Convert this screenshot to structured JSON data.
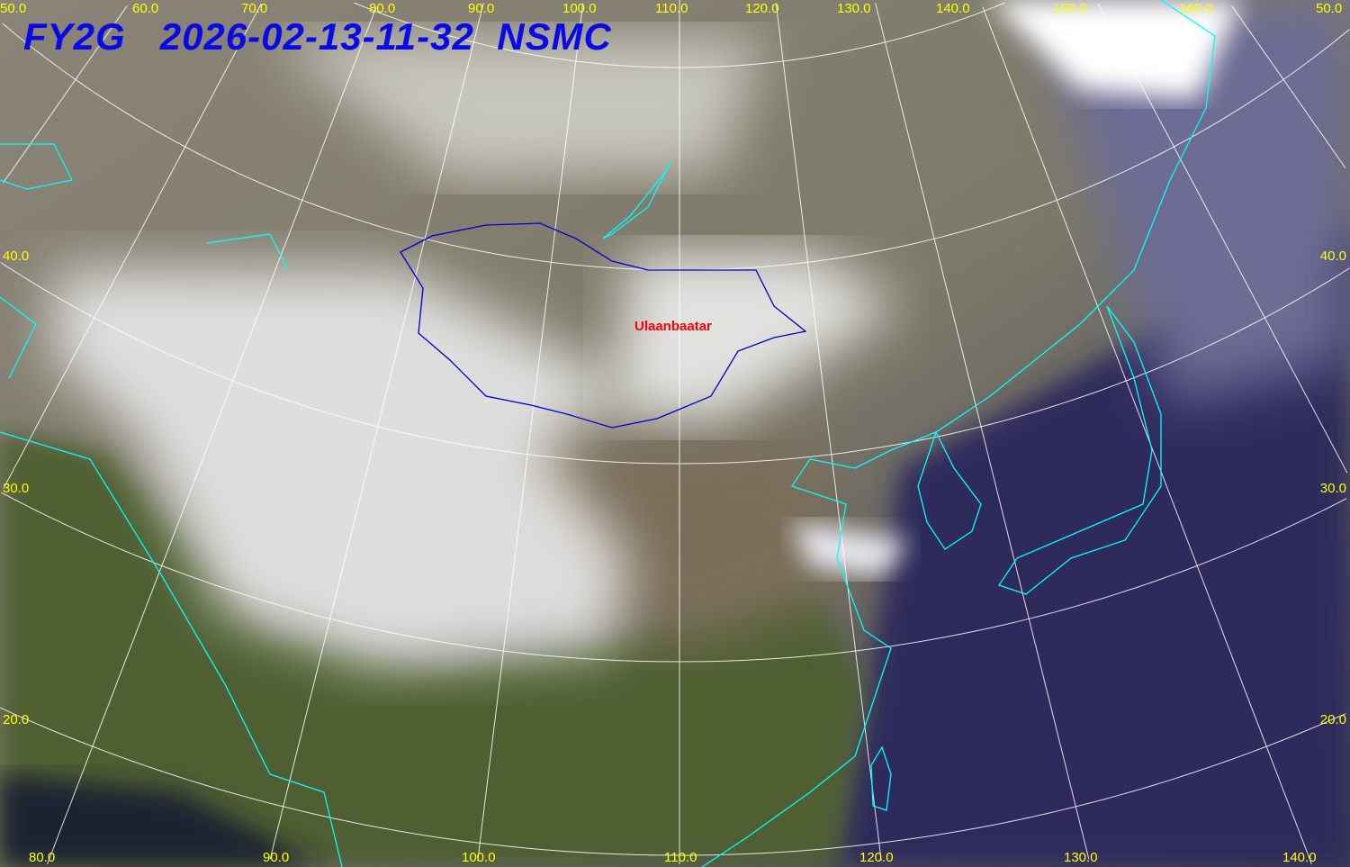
{
  "header": {
    "satellite": "FY2G",
    "datetime": "2026-02-13-11-32",
    "agency": "NSMC"
  },
  "graticule": {
    "top_labels": [
      "50.0",
      "60.0",
      "70.0",
      "80.0",
      "90.0",
      "100.0",
      "110.0",
      "120.0",
      "130.0",
      "140.0",
      "150.0",
      "160.0",
      "50.0"
    ],
    "bottom_labels": [
      "80.0",
      "90.0",
      "100.0",
      "110.0",
      "120.0",
      "130.0",
      "140.0"
    ],
    "left_labels": [
      "40.0",
      "30.0",
      "20.0"
    ],
    "right_labels": [
      "40.0",
      "30.0",
      "20.0"
    ]
  },
  "places": {
    "city": "Ulaanbaatar"
  },
  "colors": {
    "title": "#0a0ae6",
    "labels": "#ffff00",
    "graticule": "#ffffff",
    "coastline": "#00ffff",
    "border": "#0000cc",
    "city": "#ff0000",
    "ocean": "#2c2a5a",
    "land": "#5a6a3a",
    "cloud": "#f2f2f2"
  }
}
